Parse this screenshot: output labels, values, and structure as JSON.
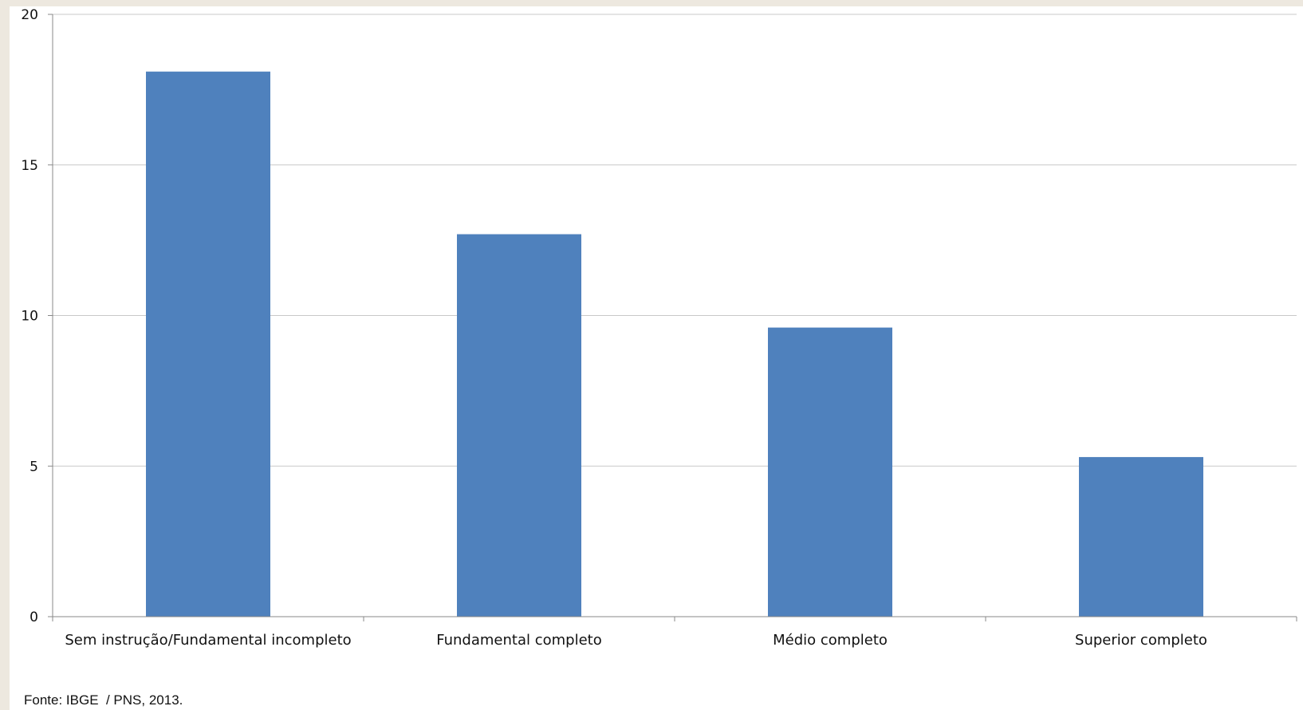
{
  "chart_data": {
    "type": "bar",
    "categories": [
      "Sem instrução/Fundamental incompleto",
      "Fundamental completo",
      "Médio completo",
      "Superior completo"
    ],
    "values": [
      18.1,
      12.7,
      9.6,
      5.3
    ],
    "title": "",
    "xlabel": "",
    "ylabel": "",
    "ylim": [
      0,
      20
    ],
    "yticks": [
      0,
      5,
      10,
      15,
      20
    ],
    "grid": true,
    "legend": "none",
    "bar_color": "#4f81bd"
  },
  "source_note": "Fonte: IBGE  / PNS, 2013."
}
